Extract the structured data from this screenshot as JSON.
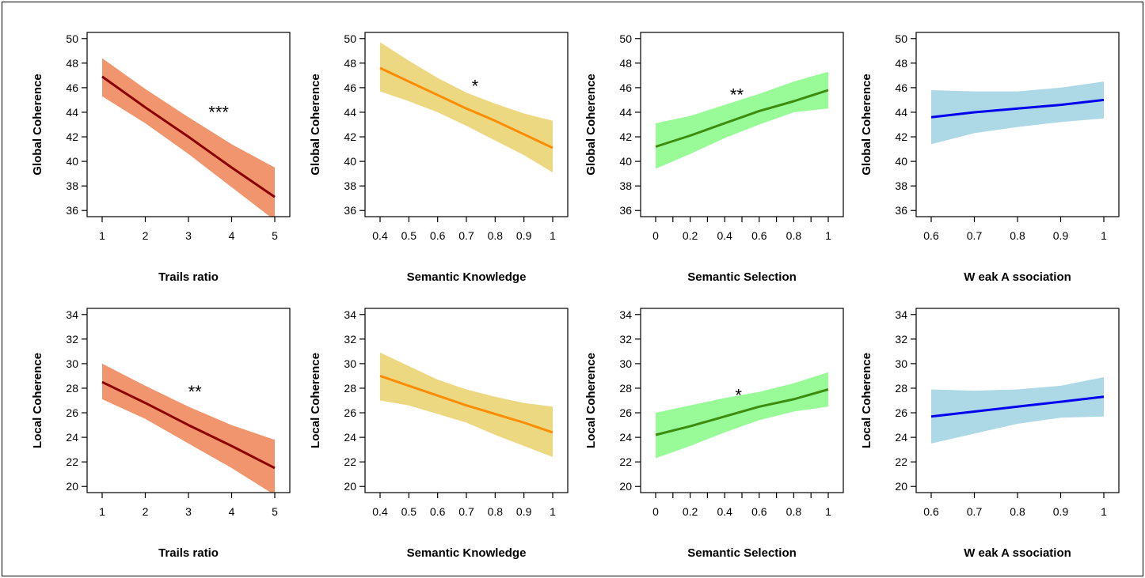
{
  "chart_data": [
    {
      "type": "line",
      "row": 1,
      "xlabel": "Trails ratio",
      "ylabel": "Global Coherence",
      "significance": "***",
      "color_band": "#F0956E",
      "color_line": "#8B0000",
      "xlim": [
        1,
        5
      ],
      "ylim": [
        35.5,
        50.5
      ],
      "xticks": [
        1,
        2,
        3,
        4,
        5
      ],
      "xtick_labels": [
        "1",
        "2",
        "3",
        "4",
        "5"
      ],
      "yticks": [
        36,
        38,
        40,
        42,
        44,
        46,
        48,
        50
      ],
      "ytick_labels": [
        "36",
        "38",
        "40",
        "42",
        "44",
        "46",
        "48",
        "50"
      ],
      "x": [
        1,
        2,
        3,
        4,
        5
      ],
      "y": [
        46.9,
        44.4,
        42.0,
        39.5,
        37.1
      ],
      "lower": [
        45.3,
        43.1,
        40.6,
        37.9,
        35.2
      ],
      "upper": [
        48.4,
        45.9,
        43.6,
        41.4,
        39.5
      ],
      "sig_pos": [
        3.7,
        44.3
      ]
    },
    {
      "type": "line",
      "row": 1,
      "xlabel": "Semantic Knowledge",
      "ylabel": "Global Coherence",
      "significance": "*",
      "color_band": "#EDD882",
      "color_line": "#FF8C00",
      "xlim": [
        0.4,
        1
      ],
      "ylim": [
        35.5,
        50.5
      ],
      "xticks": [
        0.4,
        0.5,
        0.6,
        0.7,
        0.8,
        0.9,
        1
      ],
      "xtick_labels": [
        "0.4",
        "0.5",
        "0.6",
        "0.7",
        "0.8",
        "0.9",
        "1"
      ],
      "yticks": [
        36,
        38,
        40,
        42,
        44,
        46,
        48,
        50
      ],
      "ytick_labels": [
        "36",
        "38",
        "40",
        "42",
        "44",
        "46",
        "48",
        "50"
      ],
      "x": [
        0.4,
        0.5,
        0.6,
        0.7,
        0.8,
        0.9,
        1
      ],
      "y": [
        47.6,
        46.5,
        45.4,
        44.3,
        43.3,
        42.2,
        41.1
      ],
      "lower": [
        45.7,
        44.9,
        44.0,
        42.9,
        41.7,
        40.5,
        39.1
      ],
      "upper": [
        49.7,
        48.2,
        46.8,
        45.6,
        44.7,
        43.9,
        43.3
      ],
      "sig_pos": [
        0.73,
        46.4
      ]
    },
    {
      "type": "line",
      "row": 1,
      "xlabel": "Semantic Selection",
      "ylabel": "Global Coherence",
      "significance": "**",
      "color_band": "#98FB98",
      "color_line": "#3C8C10",
      "xlim": [
        0,
        1
      ],
      "ylim": [
        35.5,
        50.5
      ],
      "xticks": [
        0,
        0.1,
        0.2,
        0.3,
        0.4,
        0.5,
        0.6,
        0.7,
        0.8,
        0.9,
        1
      ],
      "xtick_labels": [
        "0",
        "",
        "0.2",
        "",
        "0.4",
        "",
        "0.6",
        "",
        "0.8",
        "",
        "1"
      ],
      "yticks": [
        36,
        38,
        40,
        42,
        44,
        46,
        48,
        50
      ],
      "ytick_labels": [
        "36",
        "38",
        "40",
        "42",
        "44",
        "46",
        "48",
        "50"
      ],
      "x": [
        0,
        0.2,
        0.4,
        0.6,
        0.8,
        1
      ],
      "y": [
        41.2,
        42.1,
        43.1,
        44.1,
        44.9,
        45.8
      ],
      "lower": [
        39.4,
        40.6,
        41.9,
        43.0,
        44.0,
        44.3
      ],
      "upper": [
        43.1,
        43.7,
        44.6,
        45.5,
        46.5,
        47.3
      ],
      "sig_pos": [
        0.47,
        45.7
      ]
    },
    {
      "type": "line",
      "row": 1,
      "xlabel": "W eak A ssociation",
      "ylabel": "Global Coherence",
      "significance": "",
      "color_band": "#ADD8E6",
      "color_line": "#0000EE",
      "xlim": [
        0.6,
        1
      ],
      "ylim": [
        35.5,
        50.5
      ],
      "xticks": [
        0.6,
        0.7,
        0.8,
        0.9,
        1
      ],
      "xtick_labels": [
        "0.6",
        "0.7",
        "0.8",
        "0.9",
        "1"
      ],
      "yticks": [
        36,
        38,
        40,
        42,
        44,
        46,
        48,
        50
      ],
      "ytick_labels": [
        "36",
        "38",
        "40",
        "42",
        "44",
        "46",
        "48",
        "50"
      ],
      "x": [
        0.6,
        0.7,
        0.8,
        0.9,
        1
      ],
      "y": [
        43.6,
        44.0,
        44.3,
        44.6,
        45.0
      ],
      "lower": [
        41.4,
        42.3,
        42.8,
        43.2,
        43.5
      ],
      "upper": [
        45.8,
        45.7,
        45.7,
        46.0,
        46.5
      ],
      "sig_pos": null
    },
    {
      "type": "line",
      "row": 2,
      "xlabel": "Trails ratio",
      "ylabel": "Local Coherence",
      "significance": "**",
      "color_band": "#F0956E",
      "color_line": "#8B0000",
      "xlim": [
        1,
        5
      ],
      "ylim": [
        19.5,
        34.5
      ],
      "xticks": [
        1,
        2,
        3,
        4,
        5
      ],
      "xtick_labels": [
        "1",
        "2",
        "3",
        "4",
        "5"
      ],
      "yticks": [
        20,
        22,
        24,
        26,
        28,
        30,
        32,
        34
      ],
      "ytick_labels": [
        "20",
        "22",
        "24",
        "26",
        "28",
        "30",
        "32",
        "34"
      ],
      "x": [
        1,
        2,
        3,
        4,
        5
      ],
      "y": [
        28.5,
        26.8,
        25.0,
        23.3,
        21.5
      ],
      "lower": [
        27.1,
        25.5,
        23.5,
        21.5,
        19.3
      ],
      "upper": [
        30.0,
        28.2,
        26.5,
        25.0,
        23.8
      ],
      "sig_pos": [
        3.15,
        28.0
      ]
    },
    {
      "type": "line",
      "row": 2,
      "xlabel": "Semantic Knowledge",
      "ylabel": "Local Coherence",
      "significance": "",
      "color_band": "#EDD882",
      "color_line": "#FF8C00",
      "xlim": [
        0.4,
        1
      ],
      "ylim": [
        19.5,
        34.5
      ],
      "xticks": [
        0.4,
        0.5,
        0.6,
        0.7,
        0.8,
        0.9,
        1
      ],
      "xtick_labels": [
        "0.4",
        "0.5",
        "0.6",
        "0.7",
        "0.8",
        "0.9",
        "1"
      ],
      "yticks": [
        20,
        22,
        24,
        26,
        28,
        30,
        32,
        34
      ],
      "ytick_labels": [
        "20",
        "22",
        "24",
        "26",
        "28",
        "30",
        "32",
        "34"
      ],
      "x": [
        0.4,
        0.5,
        0.6,
        0.7,
        0.8,
        0.9,
        1
      ],
      "y": [
        29.0,
        28.2,
        27.4,
        26.6,
        25.9,
        25.2,
        24.4
      ],
      "lower": [
        27.0,
        26.6,
        25.9,
        25.2,
        24.2,
        23.3,
        22.4
      ],
      "upper": [
        30.9,
        29.8,
        28.7,
        27.9,
        27.3,
        26.8,
        26.5
      ],
      "sig_pos": null
    },
    {
      "type": "line",
      "row": 2,
      "xlabel": "Semantic Selection",
      "ylabel": "Local Coherence",
      "significance": "*",
      "color_band": "#98FB98",
      "color_line": "#3C8C10",
      "xlim": [
        0,
        1
      ],
      "ylim": [
        19.5,
        34.5
      ],
      "xticks": [
        0,
        0.1,
        0.2,
        0.3,
        0.4,
        0.5,
        0.6,
        0.7,
        0.8,
        0.9,
        1
      ],
      "xtick_labels": [
        "0",
        "",
        "0.2",
        "",
        "0.4",
        "",
        "0.6",
        "",
        "0.8",
        "",
        "1"
      ],
      "yticks": [
        20,
        22,
        24,
        26,
        28,
        30,
        32,
        34
      ],
      "ytick_labels": [
        "20",
        "22",
        "24",
        "26",
        "28",
        "30",
        "32",
        "34"
      ],
      "x": [
        0,
        0.2,
        0.4,
        0.6,
        0.8,
        1
      ],
      "y": [
        24.2,
        24.9,
        25.7,
        26.5,
        27.1,
        27.9
      ],
      "lower": [
        22.3,
        23.3,
        24.4,
        25.4,
        26.1,
        26.5
      ],
      "upper": [
        26.0,
        26.6,
        27.2,
        27.7,
        28.4,
        29.3
      ],
      "sig_pos": [
        0.48,
        27.7
      ]
    },
    {
      "type": "line",
      "row": 2,
      "xlabel": "W eak A ssociation",
      "ylabel": "Local Coherence",
      "significance": "",
      "color_band": "#ADD8E6",
      "color_line": "#0000EE",
      "xlim": [
        0.6,
        1
      ],
      "ylim": [
        19.5,
        34.5
      ],
      "xticks": [
        0.6,
        0.7,
        0.8,
        0.9,
        1
      ],
      "xtick_labels": [
        "0.6",
        "0.7",
        "0.8",
        "0.9",
        "1"
      ],
      "yticks": [
        20,
        22,
        24,
        26,
        28,
        30,
        32,
        34
      ],
      "ytick_labels": [
        "20",
        "22",
        "24",
        "26",
        "28",
        "30",
        "32",
        "34"
      ],
      "x": [
        0.6,
        0.7,
        0.8,
        0.9,
        1
      ],
      "y": [
        25.7,
        26.1,
        26.5,
        26.9,
        27.3
      ],
      "lower": [
        23.5,
        24.3,
        25.1,
        25.6,
        25.7
      ],
      "upper": [
        27.9,
        27.8,
        27.9,
        28.2,
        28.9
      ],
      "sig_pos": null
    }
  ]
}
